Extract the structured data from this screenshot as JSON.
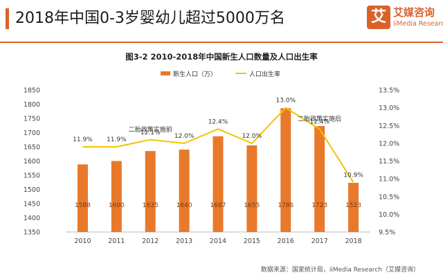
{
  "header": {
    "title": "2018年中国0-3岁婴幼儿超过5000万名",
    "accent_color": "#d9622b"
  },
  "brand": {
    "mark": "艾",
    "name_cn": "艾媒咨询",
    "name_en": "iiMedia Research",
    "color": "#d9622b"
  },
  "chart_data": {
    "type": "bar",
    "title": "图3-2 2010-2018年中国新生人口数量及人口出生率",
    "categories": [
      "2010",
      "2011",
      "2012",
      "2013",
      "2014",
      "2015",
      "2016",
      "2017",
      "2018"
    ],
    "series": [
      {
        "name": "新生人口（万）",
        "type": "bar",
        "axis": "left",
        "color": "#e8792b",
        "values": [
          1588,
          1600,
          1635,
          1640,
          1687,
          1655,
          1786,
          1723,
          1523
        ],
        "labels": [
          "1588",
          "1600",
          "1635",
          "1640",
          "1687",
          "1655",
          "1786",
          "1723",
          "1523"
        ]
      },
      {
        "name": "人口出生率",
        "type": "line",
        "axis": "right",
        "color": "#f2c300",
        "values": [
          11.9,
          11.9,
          12.1,
          12.0,
          12.4,
          12.0,
          13.0,
          12.4,
          10.9
        ],
        "labels": [
          "11.9%",
          "11.9%",
          "12.1%",
          "12.0%",
          "12.4%",
          "12.0%",
          "13.0%",
          "12.4%",
          "10.9%"
        ]
      }
    ],
    "y_left": {
      "min": 1350,
      "max": 1850,
      "ticks": [
        "1350",
        "1400",
        "1450",
        "1500",
        "1550",
        "1600",
        "1650",
        "1700",
        "1750",
        "1800",
        "1850"
      ]
    },
    "y_right": {
      "min": 9.5,
      "max": 13.5,
      "ticks": [
        "9.5%",
        "10.0%",
        "10.5%",
        "11.0%",
        "11.5%",
        "12.0%",
        "12.5%",
        "13.0%",
        "13.5%"
      ]
    },
    "annotations": [
      {
        "text": "二胎政策实施前",
        "category": "2012"
      },
      {
        "text": "二胎政策实施后",
        "category": "2017"
      }
    ],
    "legend_position": "top-center",
    "grid": false
  },
  "source": "数据来源：国家统计局，iiMedia Research（艾媒咨询）"
}
